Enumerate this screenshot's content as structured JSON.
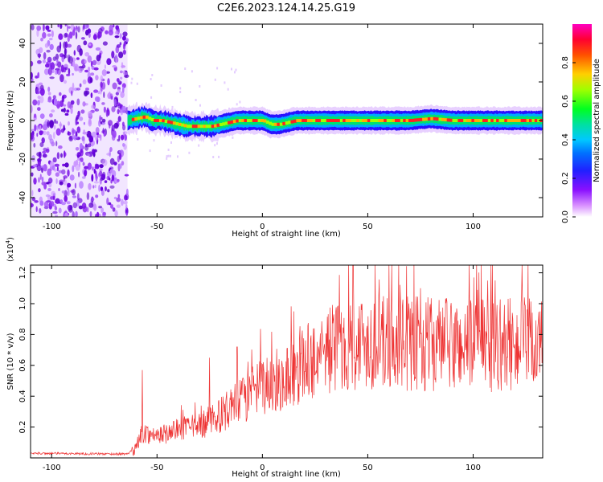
{
  "title": "C2E6.2023.124.14.25.G19",
  "colors": {
    "snr_line": "#ee3333",
    "noise": "#7a1ee0",
    "axis": "#000000",
    "background": "#ffffff"
  },
  "chart_data": [
    {
      "type": "heatmap",
      "name": "spectrogram",
      "xlabel": "Height of straight line (km)",
      "ylabel": "Frequency (Hz)",
      "xlim": [
        -110,
        133
      ],
      "ylim": [
        -50,
        50
      ],
      "xticks": [
        -100,
        -50,
        0,
        50,
        100
      ],
      "xtick_labels": [
        "-100",
        "-50",
        "0",
        "50",
        "100"
      ],
      "yticks": [
        -40,
        -20,
        0,
        20,
        40
      ],
      "ytick_labels": [
        "-40",
        "-20",
        "0",
        "20",
        "40"
      ],
      "noise_region_x": [
        -110,
        -64
      ],
      "signal_start_x": -64,
      "colorbar": {
        "label": "Normalized spectral amplitude",
        "range": [
          0,
          1
        ],
        "ticks": [
          0,
          0.2,
          0.4,
          0.6,
          0.8
        ],
        "tick_labels": [
          "0.0",
          "0.2",
          "0.4",
          "0.6",
          "0.8"
        ],
        "colormap": [
          "#ffffff",
          "#d080ff",
          "#7000ff",
          "#0000ff",
          "#00bfff",
          "#00e0a0",
          "#00ff00",
          "#b0ff00",
          "#ffc000",
          "#ff6000",
          "#ff0000",
          "#ff00a0"
        ]
      },
      "ridge": {
        "x": [
          -64,
          -60,
          -56,
          -52,
          -48,
          -44,
          -40,
          -36,
          -32,
          -28,
          -24,
          -20,
          -16,
          -12,
          -8,
          -4,
          0,
          4,
          8,
          12,
          16,
          20,
          30,
          40,
          50,
          60,
          70,
          80,
          90,
          100,
          110,
          120,
          133
        ],
        "freq": [
          0,
          1,
          2,
          0,
          0,
          -1,
          -2,
          -3,
          -3,
          -3,
          -3,
          -2,
          -1,
          0,
          0,
          0,
          0,
          -2,
          -2,
          -1,
          0,
          0,
          0,
          0,
          0,
          0,
          0,
          1,
          0,
          0,
          0,
          0,
          0
        ]
      }
    },
    {
      "type": "line",
      "name": "snr",
      "xlabel": "Height of straight line (km)",
      "ylabel": "SNR (10 * v/v)",
      "y_multiplier": "(x10",
      "y_multiplier_exp": "4",
      "y_multiplier_close": ")",
      "xlim": [
        -110,
        133
      ],
      "ylim": [
        0,
        1.25
      ],
      "xticks": [
        -100,
        -50,
        0,
        50,
        100
      ],
      "xtick_labels": [
        "-100",
        "-50",
        "0",
        "50",
        "100"
      ],
      "yticks": [
        0.2,
        0.4,
        0.6,
        0.8,
        1.0,
        1.2
      ],
      "ytick_labels": [
        "0.2",
        "0.4",
        "0.6",
        "0.8",
        "1.0",
        "1.2"
      ],
      "envelope": {
        "x": [
          -110,
          -64,
          -60,
          -57,
          -50,
          -40,
          -30,
          -20,
          -10,
          0,
          10,
          20,
          30,
          40,
          50,
          60,
          70,
          80,
          90,
          100,
          110,
          120,
          133
        ],
        "y": [
          0.03,
          0.025,
          0.07,
          0.18,
          0.15,
          0.2,
          0.22,
          0.3,
          0.4,
          0.5,
          0.56,
          0.66,
          0.76,
          0.8,
          0.82,
          0.8,
          0.8,
          0.8,
          0.79,
          0.8,
          0.79,
          0.8,
          0.8
        ]
      },
      "peaks": [
        {
          "x": -57,
          "y": 0.57
        },
        {
          "x": -25,
          "y": 0.65
        },
        {
          "x": -12,
          "y": 0.72
        },
        {
          "x": 15,
          "y": 0.95
        },
        {
          "x": 43,
          "y": 1.25
        },
        {
          "x": 60,
          "y": 1.25
        },
        {
          "x": 75,
          "y": 1.1
        },
        {
          "x": 107,
          "y": 1.15
        },
        {
          "x": 123,
          "y": 1.05
        }
      ]
    }
  ]
}
